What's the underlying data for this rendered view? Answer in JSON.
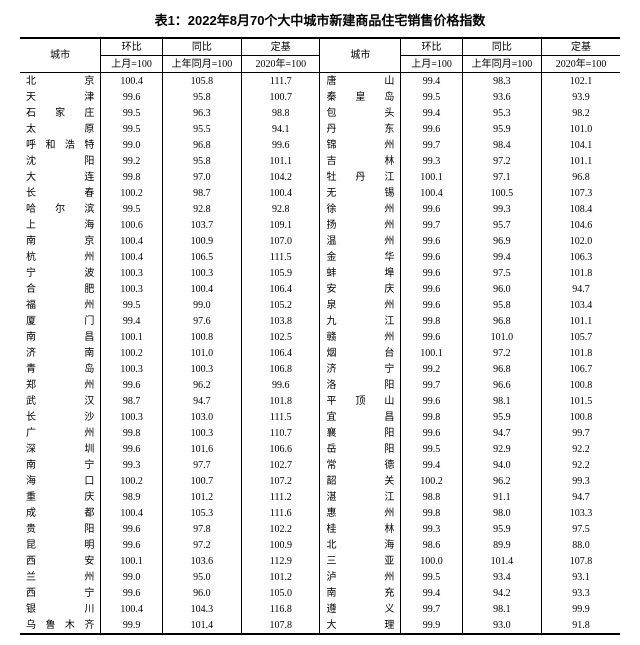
{
  "title": "表1：2022年8月70个大中城市新建商品住宅销售价格指数",
  "header": {
    "city": "城市",
    "mom": "环比",
    "yoy": "同比",
    "base": "定基",
    "mom_sub": "上月=100",
    "yoy_sub": "上年同月=100",
    "base_sub": "2020年=100"
  },
  "rows": [
    {
      "c1": "北京",
      "m1": "100.4",
      "y1": "105.8",
      "b1": "111.7",
      "c2": "唐山",
      "m2": "99.4",
      "y2": "98.3",
      "b2": "102.1"
    },
    {
      "c1": "天津",
      "m1": "99.6",
      "y1": "95.8",
      "b1": "100.7",
      "c2": "秦皇岛",
      "m2": "99.5",
      "y2": "93.6",
      "b2": "93.9"
    },
    {
      "c1": "石家庄",
      "m1": "99.5",
      "y1": "96.3",
      "b1": "98.8",
      "c2": "包头",
      "m2": "99.4",
      "y2": "95.3",
      "b2": "98.2"
    },
    {
      "c1": "太原",
      "m1": "99.5",
      "y1": "95.5",
      "b1": "94.1",
      "c2": "丹东",
      "m2": "99.6",
      "y2": "95.9",
      "b2": "101.0"
    },
    {
      "c1": "呼和浩特",
      "m1": "99.0",
      "y1": "96.8",
      "b1": "99.6",
      "c2": "锦州",
      "m2": "99.7",
      "y2": "98.4",
      "b2": "104.1"
    },
    {
      "c1": "沈阳",
      "m1": "99.2",
      "y1": "95.8",
      "b1": "101.1",
      "c2": "吉林",
      "m2": "99.3",
      "y2": "97.2",
      "b2": "101.1"
    },
    {
      "c1": "大连",
      "m1": "99.8",
      "y1": "97.0",
      "b1": "104.2",
      "c2": "牡丹江",
      "m2": "100.1",
      "y2": "97.1",
      "b2": "96.8"
    },
    {
      "c1": "长春",
      "m1": "100.2",
      "y1": "98.7",
      "b1": "100.4",
      "c2": "无锡",
      "m2": "100.4",
      "y2": "100.5",
      "b2": "107.3"
    },
    {
      "c1": "哈尔滨",
      "m1": "99.5",
      "y1": "92.8",
      "b1": "92.8",
      "c2": "徐州",
      "m2": "99.6",
      "y2": "99.3",
      "b2": "108.4"
    },
    {
      "c1": "上海",
      "m1": "100.6",
      "y1": "103.7",
      "b1": "109.1",
      "c2": "扬州",
      "m2": "99.7",
      "y2": "95.7",
      "b2": "104.6"
    },
    {
      "c1": "南京",
      "m1": "100.4",
      "y1": "100.9",
      "b1": "107.0",
      "c2": "温州",
      "m2": "99.6",
      "y2": "96.9",
      "b2": "102.0"
    },
    {
      "c1": "杭州",
      "m1": "100.4",
      "y1": "106.5",
      "b1": "111.5",
      "c2": "金华",
      "m2": "99.6",
      "y2": "99.4",
      "b2": "106.3"
    },
    {
      "c1": "宁波",
      "m1": "100.3",
      "y1": "100.3",
      "b1": "105.9",
      "c2": "蚌埠",
      "m2": "99.6",
      "y2": "97.5",
      "b2": "101.8"
    },
    {
      "c1": "合肥",
      "m1": "100.3",
      "y1": "100.4",
      "b1": "106.4",
      "c2": "安庆",
      "m2": "99.6",
      "y2": "96.0",
      "b2": "94.7"
    },
    {
      "c1": "福州",
      "m1": "99.5",
      "y1": "99.0",
      "b1": "105.2",
      "c2": "泉州",
      "m2": "99.6",
      "y2": "95.8",
      "b2": "103.4"
    },
    {
      "c1": "厦门",
      "m1": "99.4",
      "y1": "97.6",
      "b1": "103.8",
      "c2": "九江",
      "m2": "99.8",
      "y2": "96.8",
      "b2": "101.1"
    },
    {
      "c1": "南昌",
      "m1": "100.1",
      "y1": "100.8",
      "b1": "102.5",
      "c2": "赣州",
      "m2": "99.6",
      "y2": "101.0",
      "b2": "105.7"
    },
    {
      "c1": "济南",
      "m1": "100.2",
      "y1": "101.0",
      "b1": "106.4",
      "c2": "烟台",
      "m2": "100.1",
      "y2": "97.2",
      "b2": "101.8"
    },
    {
      "c1": "青岛",
      "m1": "100.3",
      "y1": "100.3",
      "b1": "106.8",
      "c2": "济宁",
      "m2": "99.2",
      "y2": "96.8",
      "b2": "106.7"
    },
    {
      "c1": "郑州",
      "m1": "99.6",
      "y1": "96.2",
      "b1": "99.6",
      "c2": "洛阳",
      "m2": "99.7",
      "y2": "96.6",
      "b2": "100.8"
    },
    {
      "c1": "武汉",
      "m1": "98.7",
      "y1": "94.7",
      "b1": "101.8",
      "c2": "平顶山",
      "m2": "99.6",
      "y2": "98.1",
      "b2": "101.5"
    },
    {
      "c1": "长沙",
      "m1": "100.3",
      "y1": "103.0",
      "b1": "111.5",
      "c2": "宜昌",
      "m2": "99.8",
      "y2": "95.9",
      "b2": "100.8"
    },
    {
      "c1": "广州",
      "m1": "99.8",
      "y1": "100.3",
      "b1": "110.7",
      "c2": "襄阳",
      "m2": "99.6",
      "y2": "94.7",
      "b2": "99.7"
    },
    {
      "c1": "深圳",
      "m1": "99.6",
      "y1": "101.6",
      "b1": "106.6",
      "c2": "岳阳",
      "m2": "99.5",
      "y2": "92.9",
      "b2": "92.2"
    },
    {
      "c1": "南宁",
      "m1": "99.3",
      "y1": "97.7",
      "b1": "102.7",
      "c2": "常德",
      "m2": "99.4",
      "y2": "94.0",
      "b2": "92.2"
    },
    {
      "c1": "海口",
      "m1": "100.2",
      "y1": "100.7",
      "b1": "107.2",
      "c2": "韶关",
      "m2": "100.2",
      "y2": "96.2",
      "b2": "99.3"
    },
    {
      "c1": "重庆",
      "m1": "98.9",
      "y1": "101.2",
      "b1": "111.2",
      "c2": "湛江",
      "m2": "98.8",
      "y2": "91.1",
      "b2": "94.7"
    },
    {
      "c1": "成都",
      "m1": "100.4",
      "y1": "105.3",
      "b1": "111.6",
      "c2": "惠州",
      "m2": "99.8",
      "y2": "98.0",
      "b2": "103.3"
    },
    {
      "c1": "贵阳",
      "m1": "99.6",
      "y1": "97.8",
      "b1": "102.2",
      "c2": "桂林",
      "m2": "99.3",
      "y2": "95.9",
      "b2": "97.5"
    },
    {
      "c1": "昆明",
      "m1": "99.6",
      "y1": "97.2",
      "b1": "100.9",
      "c2": "北海",
      "m2": "98.6",
      "y2": "89.9",
      "b2": "88.0"
    },
    {
      "c1": "西安",
      "m1": "100.1",
      "y1": "103.6",
      "b1": "112.9",
      "c2": "三亚",
      "m2": "100.0",
      "y2": "101.4",
      "b2": "107.8"
    },
    {
      "c1": "兰州",
      "m1": "99.0",
      "y1": "95.0",
      "b1": "101.2",
      "c2": "泸州",
      "m2": "99.5",
      "y2": "93.4",
      "b2": "93.1"
    },
    {
      "c1": "西宁",
      "m1": "99.6",
      "y1": "96.0",
      "b1": "105.0",
      "c2": "南充",
      "m2": "99.4",
      "y2": "94.2",
      "b2": "93.3"
    },
    {
      "c1": "银川",
      "m1": "100.4",
      "y1": "104.3",
      "b1": "116.8",
      "c2": "遵义",
      "m2": "99.7",
      "y2": "98.1",
      "b2": "99.9"
    },
    {
      "c1": "乌鲁木齐",
      "m1": "99.9",
      "y1": "101.4",
      "b1": "107.8",
      "c2": "大理",
      "m2": "99.9",
      "y2": "93.0",
      "b2": "91.8"
    }
  ]
}
